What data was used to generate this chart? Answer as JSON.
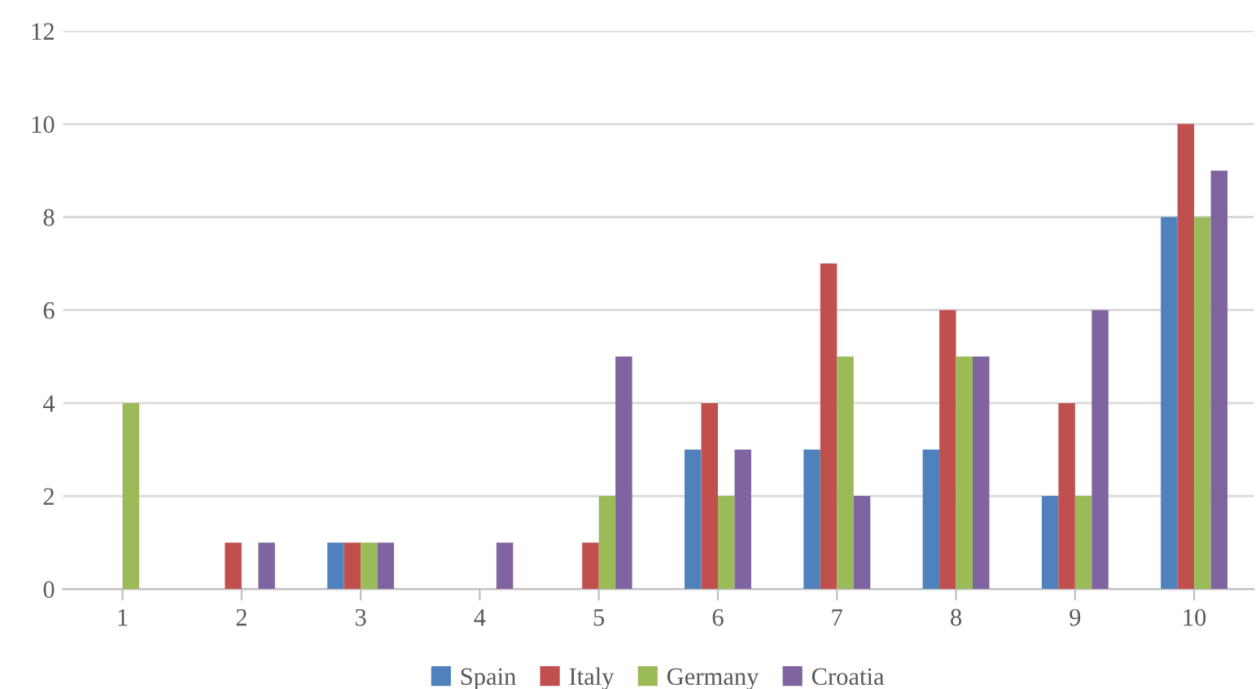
{
  "chart_data": {
    "type": "bar",
    "categories": [
      "1",
      "2",
      "3",
      "4",
      "5",
      "6",
      "7",
      "8",
      "9",
      "10"
    ],
    "series": [
      {
        "name": "Spain",
        "color": "#4f81bd",
        "values": [
          0,
          0,
          1,
          0,
          0,
          3,
          3,
          3,
          2,
          8
        ]
      },
      {
        "name": "Italy",
        "color": "#c0504d",
        "values": [
          0,
          1,
          1,
          0,
          1,
          4,
          7,
          6,
          4,
          10
        ]
      },
      {
        "name": "Germany",
        "color": "#9bbb59",
        "values": [
          4,
          0,
          1,
          0,
          2,
          2,
          5,
          5,
          2,
          8
        ]
      },
      {
        "name": "Croatia",
        "color": "#8064a2",
        "values": [
          0,
          1,
          1,
          1,
          5,
          3,
          2,
          5,
          6,
          9
        ]
      }
    ],
    "ylim": [
      0,
      12
    ],
    "yticks": [
      0,
      2,
      4,
      6,
      8,
      10,
      12
    ],
    "grid": "y",
    "legend": "bottom"
  }
}
